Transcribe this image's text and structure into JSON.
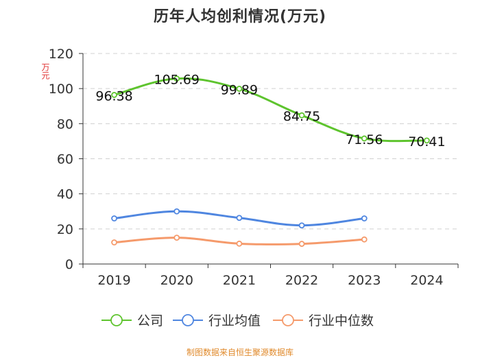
{
  "chart_data": {
    "type": "line",
    "title": "历年人均创利情况(万元)",
    "ylabel": "万元",
    "xlabel": "",
    "categories": [
      "2019",
      "2020",
      "2021",
      "2022",
      "2023",
      "2024"
    ],
    "ylim": [
      0,
      120
    ],
    "yticks": [
      0,
      20,
      40,
      60,
      80,
      100,
      120
    ],
    "grid": true,
    "legend_position": "bottom",
    "series": [
      {
        "name": "公司",
        "color": "#5ec42e",
        "values": [
          96.38,
          105.69,
          99.89,
          84.75,
          71.56,
          70.41
        ],
        "labels": [
          "96.38",
          "105.69",
          "99.89",
          "84.75",
          "71.56",
          "70.41"
        ]
      },
      {
        "name": "行业均值",
        "color": "#4f86e0",
        "values": [
          26,
          30,
          26.3,
          22,
          26,
          null
        ]
      },
      {
        "name": "行业中位数",
        "color": "#f59a6b",
        "values": [
          12.3,
          15,
          11.6,
          11.5,
          14,
          null
        ]
      }
    ]
  },
  "source": "制图数据来自恒生聚源数据库"
}
